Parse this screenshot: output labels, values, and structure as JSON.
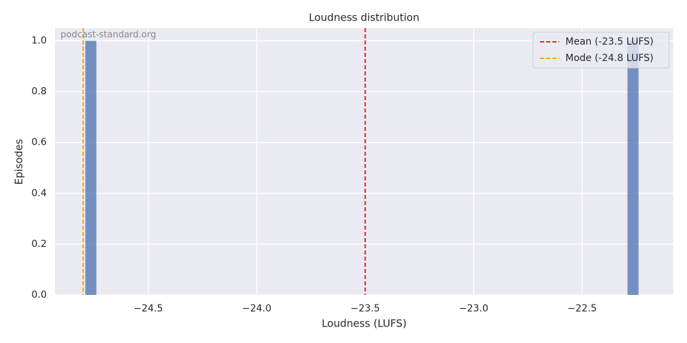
{
  "chart_data": {
    "type": "histogram",
    "title": "Loudness distribution",
    "xlabel": "Loudness (LUFS)",
    "ylabel": "Episodes",
    "annotation": "podcast-standard.org",
    "bins": [
      -24.79,
      -24.739,
      -24.688,
      -24.637,
      -24.586,
      -24.535,
      -24.484,
      -24.433,
      -24.382,
      -24.331,
      -24.28,
      -24.229,
      -24.178,
      -24.127,
      -24.076,
      -24.025,
      -23.974,
      -23.923,
      -23.872,
      -23.821,
      -23.77,
      -23.719,
      -23.668,
      -23.617,
      -23.566,
      -23.515,
      -23.464,
      -23.413,
      -23.362,
      -23.311,
      -23.26,
      -23.209,
      -23.158,
      -23.107,
      -23.056,
      -23.005,
      -22.954,
      -22.903,
      -22.852,
      -22.801,
      -22.75,
      -22.699,
      -22.648,
      -22.597,
      -22.546,
      -22.495,
      -22.444,
      -22.393,
      -22.342,
      -22.291,
      -22.24
    ],
    "values": [
      1,
      0,
      0,
      0,
      0,
      0,
      0,
      0,
      0,
      0,
      0,
      0,
      0,
      0,
      0,
      0,
      0,
      0,
      0,
      0,
      0,
      0,
      0,
      0,
      0,
      0,
      0,
      0,
      0,
      0,
      0,
      0,
      0,
      0,
      0,
      0,
      0,
      0,
      0,
      0,
      0,
      0,
      0,
      0,
      0,
      0,
      0,
      0,
      0,
      1
    ],
    "color": "#4c72b0",
    "vlines": [
      {
        "name": "Mean (-23.5 LUFS)",
        "x": -23.5,
        "color": "#d62728"
      },
      {
        "name": "Mode (-24.8 LUFS)",
        "x": -24.8,
        "color": "#ffa500"
      }
    ],
    "legend": "upper right",
    "xlim": [
      -24.93,
      -22.08
    ],
    "xticks": [
      {
        "value": -24.5,
        "label": "−24.5"
      },
      {
        "value": -24.0,
        "label": "−24.0"
      },
      {
        "value": -23.5,
        "label": "−23.5"
      },
      {
        "value": -23.0,
        "label": "−23.0"
      },
      {
        "value": -22.5,
        "label": "−22.5"
      }
    ],
    "ylim": [
      0,
      1.05
    ],
    "yticks": [
      {
        "value": 0,
        "label": "0.0"
      },
      {
        "value": 0.2,
        "label": "0.2"
      },
      {
        "value": 0.4,
        "label": "0.4"
      },
      {
        "value": 0.6,
        "label": "0.6"
      },
      {
        "value": 0.8,
        "label": "0.8"
      },
      {
        "value": 1,
        "label": "1.0"
      }
    ],
    "grid": true
  }
}
